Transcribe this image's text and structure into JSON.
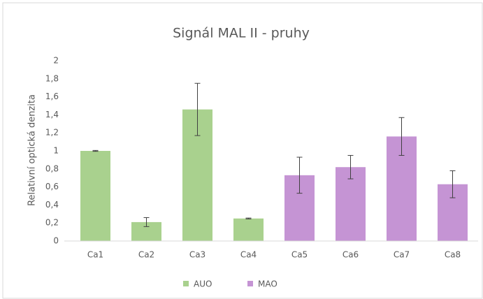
{
  "chart_data": {
    "type": "bar",
    "title": "Signál MAL II - pruhy",
    "y_label": "Relativní optická denzita",
    "categories": [
      "Ca1",
      "Ca2",
      "Ca3",
      "Ca4",
      "Ca5",
      "Ca6",
      "Ca7",
      "Ca8"
    ],
    "series": [
      {
        "name": "AUO",
        "color": "#a9d18e",
        "values": [
          1.0,
          0.21,
          1.46,
          0.25,
          null,
          null,
          null,
          null
        ],
        "errors": [
          0.005,
          0.05,
          0.29,
          0.005,
          null,
          null,
          null,
          null
        ]
      },
      {
        "name": "MAO",
        "color": "#c594d4",
        "values": [
          null,
          null,
          null,
          null,
          0.73,
          0.82,
          1.16,
          0.63
        ],
        "errors": [
          null,
          null,
          null,
          null,
          0.2,
          0.13,
          0.21,
          0.15
        ]
      }
    ],
    "ylim": [
      0,
      2
    ],
    "yticks": [
      0,
      {
        "value": 0.2,
        "label": "0,2"
      },
      {
        "value": 0.4,
        "label": "0,4"
      },
      {
        "value": 0.6,
        "label": "0,6"
      },
      {
        "value": 0.8,
        "label": "0,8"
      },
      1,
      {
        "value": 1.2,
        "label": "1,2"
      },
      {
        "value": 1.4,
        "label": "1,4"
      },
      {
        "value": 1.6,
        "label": "1,6"
      },
      {
        "value": 1.8,
        "label": "1,8"
      },
      2
    ],
    "grid": false,
    "legend": "bottom"
  }
}
